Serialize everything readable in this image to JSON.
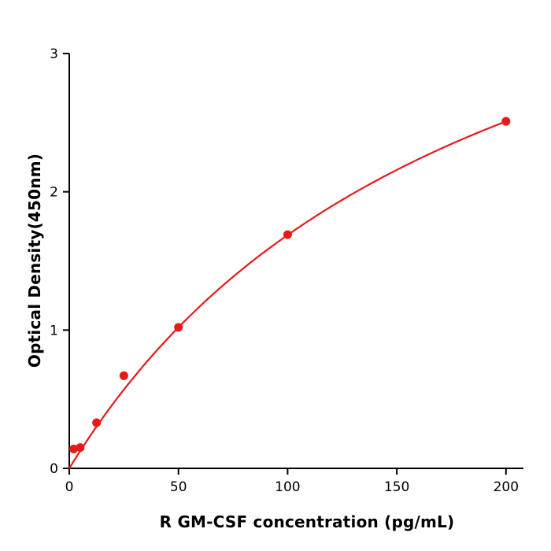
{
  "chart_data": {
    "type": "scatter",
    "title": "",
    "xlabel": "R  GM-CSF concentration (pg/mL)",
    "ylabel": "Optical Density(450nm)",
    "x": [
      2,
      5,
      12.5,
      25,
      50,
      100,
      200
    ],
    "y": [
      0.14,
      0.15,
      0.33,
      0.67,
      1.02,
      1.69,
      2.51
    ],
    "xlim": [
      0,
      208
    ],
    "ylim": [
      0,
      3
    ],
    "xticks": [
      0,
      50,
      100,
      150,
      200
    ],
    "yticks": [
      0,
      1,
      2,
      3
    ],
    "grid": false,
    "legend": "none",
    "fit_curve": {
      "type": "saturation",
      "formula": "y = a*x/(b+x)",
      "a": 4.89,
      "b": 189.8,
      "x_range": [
        0,
        200
      ]
    },
    "colors": {
      "points": "#e8191a",
      "line": "#e8191a",
      "axis": "#000000"
    }
  }
}
